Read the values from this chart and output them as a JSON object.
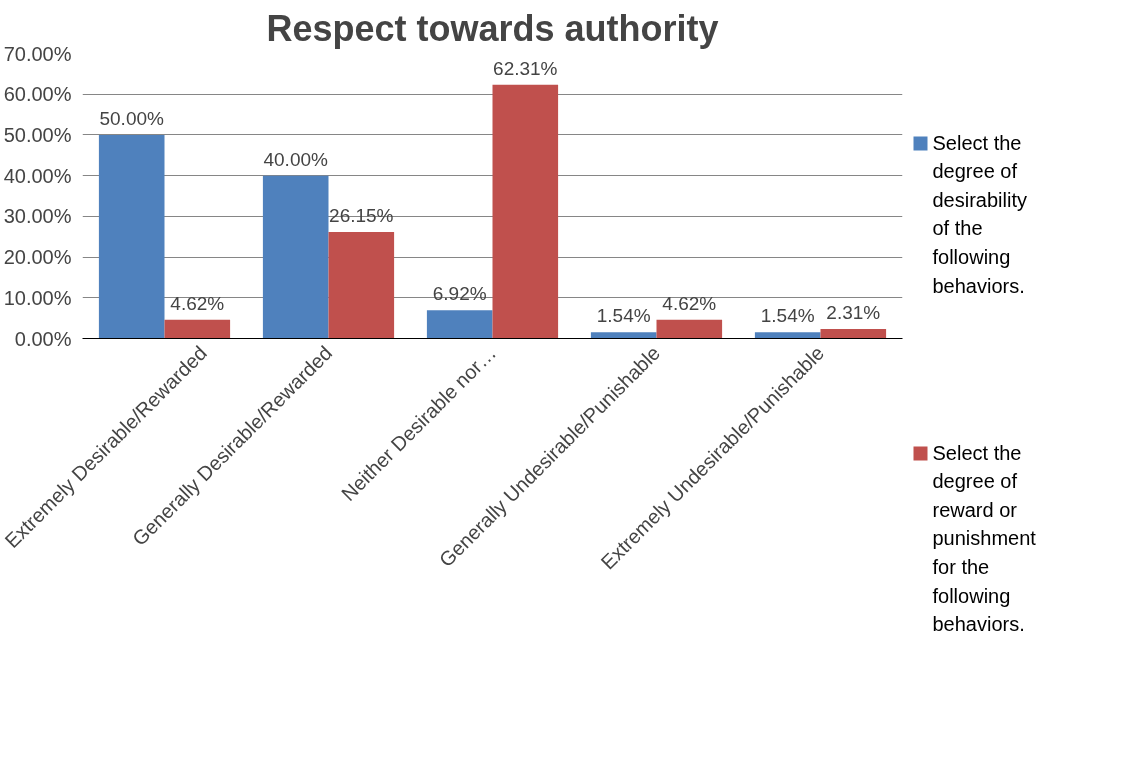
{
  "chart_data": {
    "type": "bar",
    "title": "Respect towards authority",
    "categories": [
      "Extremely Desirable/Rewarded",
      "Generally Desirable/Rewarded",
      "Neither Desirable nor…",
      "Generally Undesirable/Punishable",
      "Extremely Undesirable/Punishable"
    ],
    "series": [
      {
        "name": "Select the degree of desirability of the following behaviors.",
        "color": "#4f81bd",
        "values": [
          50.0,
          40.0,
          6.92,
          1.54,
          1.54
        ],
        "value_labels": [
          "50.00%",
          "40.00%",
          "6.92%",
          "1.54%",
          "1.54%"
        ]
      },
      {
        "name": "Select the degree of reward or punishment for the following behaviors.",
        "color": "#c0504d",
        "values": [
          4.62,
          26.15,
          62.31,
          4.62,
          2.31
        ],
        "value_labels": [
          "4.62%",
          "26.15%",
          "62.31%",
          "4.62%",
          "2.31%"
        ]
      }
    ],
    "ylim": [
      0,
      70
    ],
    "yticks": [
      {
        "value": 0,
        "label": "0.00%"
      },
      {
        "value": 10,
        "label": "10.00%"
      },
      {
        "value": 20,
        "label": "20.00%"
      },
      {
        "value": 30,
        "label": "30.00%"
      },
      {
        "value": 40,
        "label": "40.00%"
      },
      {
        "value": 50,
        "label": "50.00%"
      },
      {
        "value": 60,
        "label": "60.00%"
      },
      {
        "value": 70,
        "label": "70.00%"
      }
    ],
    "grid": "y",
    "legend": "right"
  }
}
